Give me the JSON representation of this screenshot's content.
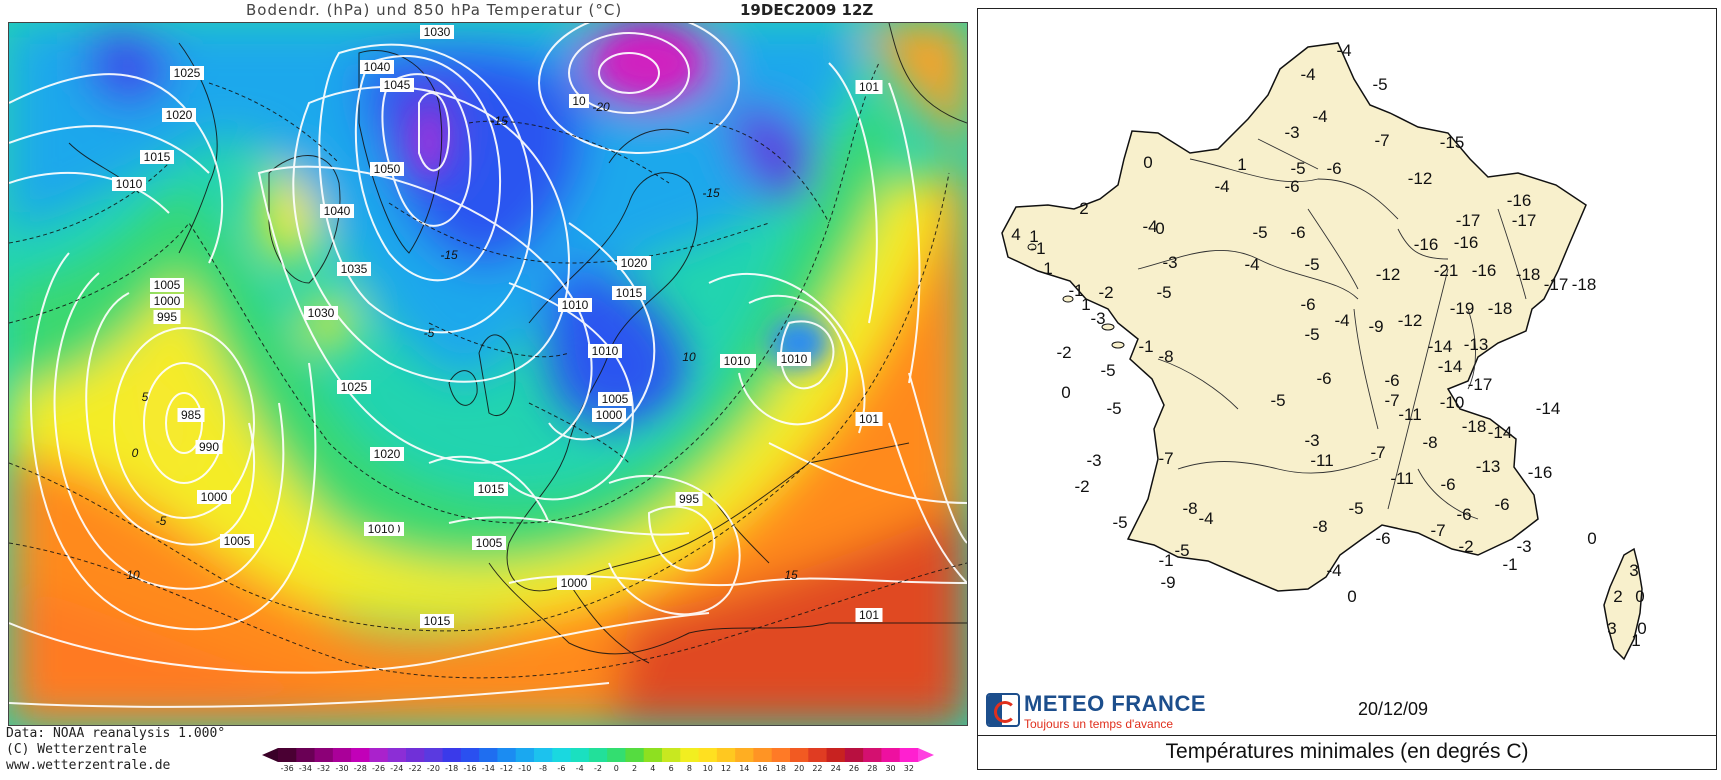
{
  "left_panel": {
    "title": "Bodendr. (hPa) und 850 hPa Temperatur (°C)",
    "datetime": "19DEC2009 12Z",
    "credits": [
      "Data: NOAA reanalysis 1.000°",
      "(C) Wetterzentrale",
      "www.wetterzentrale.de"
    ],
    "colorbar_ticks": [
      "-36",
      "-34",
      "-32",
      "-30",
      "-28",
      "-26",
      "-24",
      "-22",
      "-20",
      "-18",
      "-16",
      "-14",
      "-12",
      "-10",
      "-8",
      "-6",
      "-4",
      "-2",
      "0",
      "2",
      "4",
      "6",
      "8",
      "10",
      "12",
      "14",
      "16",
      "18",
      "20",
      "22",
      "24",
      "26",
      "28",
      "30",
      "32"
    ],
    "colorbar_colors": [
      "#4a0033",
      "#6a0055",
      "#8c0077",
      "#aa0099",
      "#c200b8",
      "#aa22cc",
      "#8c2ed6",
      "#7030d8",
      "#5a3ae0",
      "#3a3aea",
      "#2a50f0",
      "#1f6ef0",
      "#1b8cf2",
      "#1aa8f0",
      "#1cc2ee",
      "#1ad8e0",
      "#1ae0c0",
      "#22e09a",
      "#33de70",
      "#55dc40",
      "#8ee020",
      "#c8e820",
      "#f2ee20",
      "#ffe020",
      "#ffc820",
      "#ffae22",
      "#ff9424",
      "#ff7a26",
      "#f25a22",
      "#e03c22",
      "#c82220",
      "#b81040",
      "#d41070",
      "#ee10a0",
      "#ff20d0"
    ],
    "isobar_labels": [
      {
        "text": "1030"
      },
      {
        "text": "1040"
      },
      {
        "text": "1045"
      },
      {
        "text": "1050"
      },
      {
        "text": "1040"
      },
      {
        "text": "1035"
      },
      {
        "text": "1030"
      },
      {
        "text": "1025"
      },
      {
        "text": "1025"
      },
      {
        "text": "1020"
      },
      {
        "text": "1015"
      },
      {
        "text": "1010"
      },
      {
        "text": "1005"
      },
      {
        "text": "1000"
      },
      {
        "text": "995"
      },
      {
        "text": "985"
      },
      {
        "text": "990"
      },
      {
        "text": "1000"
      },
      {
        "text": "1005"
      },
      {
        "text": "1010"
      },
      {
        "text": "1015"
      },
      {
        "text": "1020"
      },
      {
        "text": "1020"
      },
      {
        "text": "1015"
      },
      {
        "text": "1010"
      },
      {
        "text": "1010"
      },
      {
        "text": "1005"
      },
      {
        "text": "1000"
      },
      {
        "text": "995"
      },
      {
        "text": "1015"
      },
      {
        "text": "1010"
      },
      {
        "text": "1005"
      },
      {
        "text": "1000"
      },
      {
        "text": "1010"
      },
      {
        "text": "1015"
      },
      {
        "text": "1010"
      },
      {
        "text": "1010"
      },
      {
        "text": "101"
      },
      {
        "text": "101"
      },
      {
        "text": "101"
      },
      {
        "text": "10"
      }
    ],
    "isotherm_labels": [
      "-15",
      "-15",
      "-15",
      "-5",
      "5",
      "0",
      "-5",
      "10",
      "15",
      "-20",
      "10"
    ]
  },
  "right_panel": {
    "brand": "METEO FRANCE",
    "slogan": "Toujours un temps d'avance",
    "date": "20/12/09",
    "caption": "Températures minimales (en degrés C)",
    "temperatures": [
      "-4",
      "-4",
      "-5",
      "-4",
      "-3",
      "-7",
      "-15",
      "0",
      "1",
      "-5",
      "-6",
      "-12",
      "-4",
      "-6",
      "-16",
      "2",
      "-4",
      "-17",
      "-16",
      "-17",
      "0",
      "-5",
      "-6",
      "4",
      "1",
      "-1",
      "-3",
      "-16",
      "-4",
      "-5",
      "1",
      "-12",
      "-21",
      "-16",
      "-18",
      "-17",
      "-18",
      "-1",
      "-2",
      "-5",
      "1",
      "-6",
      "-19",
      "-18",
      "-3",
      "-4",
      "-9",
      "-12",
      "-5",
      "-14",
      "-13",
      "-1",
      "-2",
      "-8",
      "-5",
      "-14",
      "-6",
      "-6",
      "-17",
      "0",
      "-5",
      "-5",
      "-7",
      "-10",
      "-11",
      "-18",
      "-14",
      "-14",
      "-3",
      "-3",
      "-7",
      "-11",
      "-7",
      "-8",
      "-13",
      "-16",
      "-2",
      "-11",
      "-6",
      "-8",
      "-6",
      "-5",
      "-6",
      "-4",
      "-8",
      "-6",
      "-7",
      "0",
      "-5",
      "-5",
      "-2",
      "-3",
      "-1",
      "-9",
      "-4",
      "-1",
      "0",
      "3",
      "2",
      "0",
      "0",
      "1",
      "3"
    ]
  }
}
